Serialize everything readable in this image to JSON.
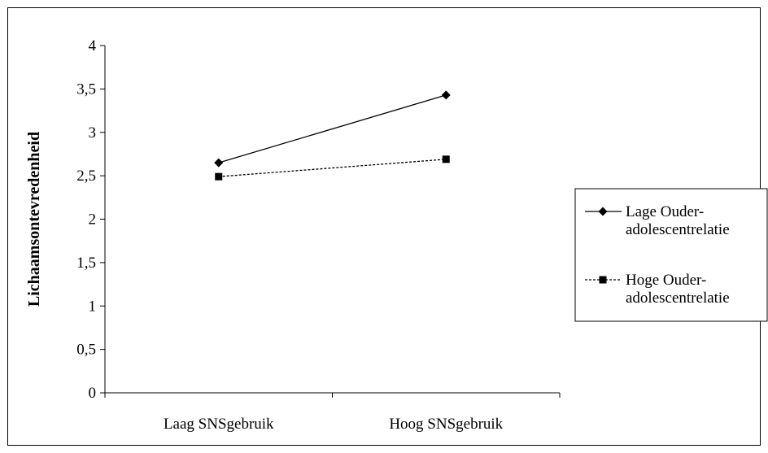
{
  "chart_data": {
    "type": "line",
    "title": "",
    "xlabel": "",
    "ylabel": "Lichaamsontevredenheid",
    "categories": [
      "Laag SNSgebruik",
      "Hoog SNSgebruik"
    ],
    "ylim": [
      0,
      4
    ],
    "y_ticks": [
      0,
      0.5,
      1,
      1.5,
      2,
      2.5,
      3,
      3.5,
      4
    ],
    "y_tick_labels": [
      "0",
      "0,5",
      "1",
      "1,5",
      "2",
      "2,5",
      "3",
      "3,5",
      "4"
    ],
    "grid": false,
    "legend_position": "right",
    "series": [
      {
        "name_lines": [
          "Lage Ouder-",
          "adolescentrelatie"
        ],
        "values": [
          2.65,
          3.43
        ],
        "marker": "diamond",
        "line_style": "solid",
        "color": "#000000"
      },
      {
        "name_lines": [
          "Hoge Ouder-",
          "adolescentrelatie"
        ],
        "values": [
          2.49,
          2.69
        ],
        "marker": "square",
        "line_style": "dashed",
        "color": "#000000"
      }
    ]
  }
}
